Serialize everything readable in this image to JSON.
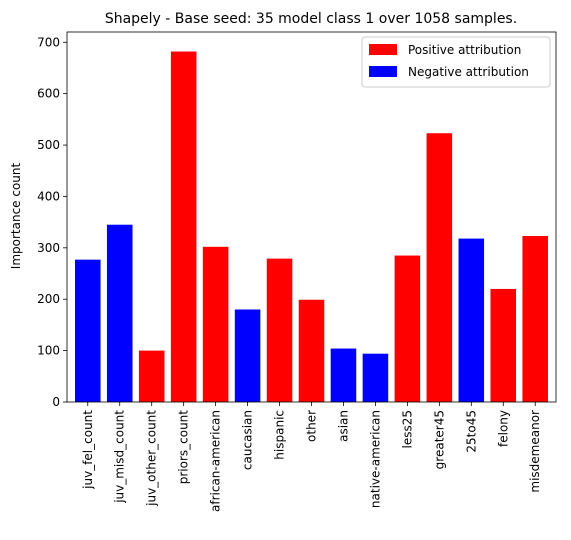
{
  "chart_data": {
    "type": "bar",
    "title": "Shapely - Base seed: 35 model class 1 over 1058 samples.",
    "xlabel": "",
    "ylabel": "Importance count",
    "ylim": [
      0,
      720
    ],
    "yticks": [
      0,
      100,
      200,
      300,
      400,
      500,
      600,
      700
    ],
    "grid": false,
    "legend_position": "top-right",
    "categories": [
      "juv_fel_count",
      "juv_misd_count",
      "juv_other_count",
      "priors_count",
      "african-american",
      "caucasian",
      "hispanic",
      "other",
      "asian",
      "native-american",
      "less25",
      "greater45",
      "25to45",
      "felony",
      "misdemeanor"
    ],
    "values": [
      277,
      345,
      100,
      682,
      302,
      180,
      279,
      199,
      104,
      94,
      285,
      523,
      318,
      220,
      323
    ],
    "attribution": [
      "negative",
      "negative",
      "positive",
      "positive",
      "positive",
      "negative",
      "positive",
      "positive",
      "negative",
      "negative",
      "positive",
      "positive",
      "negative",
      "positive",
      "positive"
    ],
    "legend": [
      {
        "key": "positive",
        "label": "Positive attribution",
        "color": "#ff0000"
      },
      {
        "key": "negative",
        "label": "Negative attribution",
        "color": "#0000ff"
      }
    ]
  }
}
